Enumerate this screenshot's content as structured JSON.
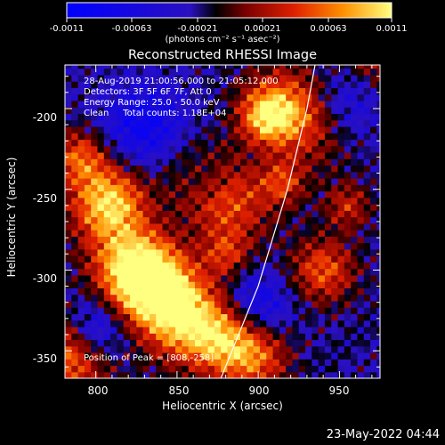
{
  "chart_data": {
    "type": "heatmap",
    "title": "Reconstructed RHESSI Image",
    "xlabel": "Heliocentric X (arcsec)",
    "ylabel": "Heliocentric Y (arcsec)",
    "xlim": [
      781,
      975
    ],
    "ylim": [
      -367,
      -173
    ],
    "x_ticks": [
      "800",
      "850",
      "900",
      "950"
    ],
    "y_ticks": [
      "-200",
      "-250",
      "-300",
      "-350"
    ],
    "colorbar": {
      "ticks": [
        "-0.0011",
        "-0.00063",
        "-0.00021",
        "0.00021",
        "0.00063",
        "0.0011"
      ],
      "unit_label": "(photons cm⁻² s⁻¹ asec⁻²)",
      "range": [
        -0.0011,
        0.0011
      ]
    },
    "annotations": [
      "28-Aug-2019 21:00:56.000 to 21:05:12.000",
      "Detectors: 3F 5F 6F 7F, Att 0",
      "Energy Range: 25.0 - 50.0 keV",
      "Clean     Total counts: 1.18E+04"
    ],
    "peak_label": "Position of Peak = [808,-258]",
    "peak_position": [
      808,
      -258
    ],
    "limb_curve": [
      [
        877,
        -367
      ],
      [
        900,
        -310
      ],
      [
        918,
        -250
      ],
      [
        930,
        -200
      ],
      [
        935,
        -173
      ]
    ]
  },
  "timestamp": "23-May-2022 04:44",
  "colors": {
    "limb": "#ffffff",
    "background": "#000000",
    "axis": "#ffffff"
  }
}
